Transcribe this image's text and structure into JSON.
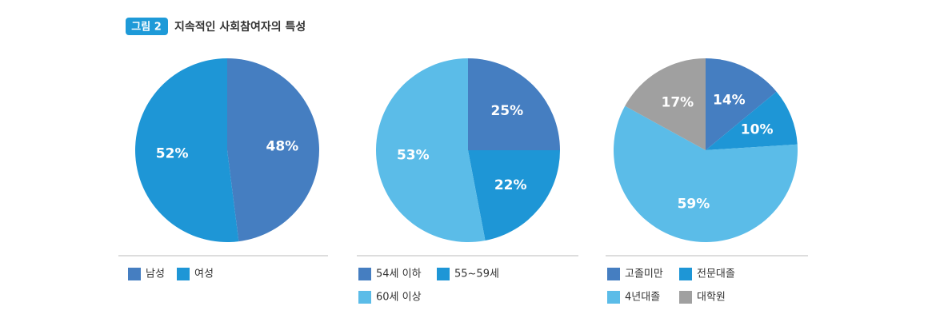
{
  "figure_label": "그림 2",
  "title": "지속적인 사회참여자의 특성",
  "chart_data": [
    {
      "type": "pie",
      "categories": [
        "남성",
        "여성"
      ],
      "values": [
        48,
        52
      ],
      "value_labels": [
        "48%",
        "52%"
      ],
      "colors": [
        "#457ec1",
        "#1e96d6"
      ]
    },
    {
      "type": "pie",
      "categories": [
        "54세 이하",
        "55~59세",
        "60세 이상"
      ],
      "values": [
        25,
        22,
        53
      ],
      "value_labels": [
        "25%",
        "22%",
        "53%"
      ],
      "colors": [
        "#457ec1",
        "#1e96d6",
        "#5bbce8"
      ]
    },
    {
      "type": "pie",
      "categories": [
        "고졸미만",
        "전문대졸",
        "4년대졸",
        "대학원"
      ],
      "values": [
        14,
        10,
        59,
        17
      ],
      "value_labels": [
        "14%",
        "10%",
        "59%",
        "17%"
      ],
      "colors": [
        "#457ec1",
        "#1e96d6",
        "#5bbce8",
        "#a0a0a0"
      ]
    }
  ]
}
